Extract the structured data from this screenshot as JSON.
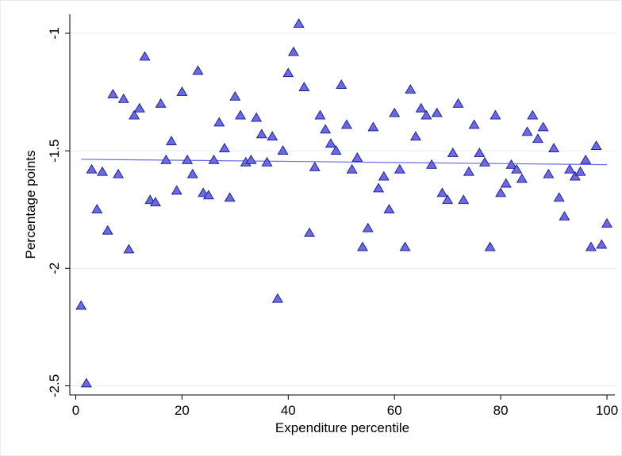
{
  "chart_data": {
    "type": "scatter",
    "xlabel": "Expenditure percentile",
    "ylabel": "Percentage points",
    "xlim": [
      0,
      100
    ],
    "ylim": [
      -2.5,
      -1
    ],
    "xticks": [
      0,
      20,
      40,
      60,
      80,
      100
    ],
    "yticks": [
      -1,
      -1.5,
      -2,
      -2.5
    ],
    "xtick_labels": [
      "0",
      "20",
      "40",
      "60",
      "80",
      "100"
    ],
    "ytick_labels": [
      "-1",
      "-1.5",
      "-2",
      "-2.5"
    ],
    "grid": "horizontal",
    "legend": "none",
    "marker": "triangle",
    "colors": {
      "marker_fill": "#6a6ae6",
      "marker_edge": "#1a1a8c",
      "fit_line": "#6a6ae6",
      "grid": "#e6ecf2"
    },
    "series": [
      {
        "x": [
          1,
          2,
          3,
          4,
          5,
          6,
          7,
          8,
          9,
          10,
          11,
          12,
          13,
          14,
          15,
          16,
          17,
          18,
          19,
          20,
          21,
          22,
          23,
          24,
          25,
          26,
          27,
          28,
          29,
          30,
          31,
          32,
          33,
          34,
          35,
          36,
          37,
          38,
          39,
          40,
          41,
          42,
          43,
          44,
          45,
          46,
          47,
          48,
          49,
          50,
          51,
          52,
          53,
          54,
          55,
          56,
          57,
          58,
          59,
          60,
          61,
          62,
          63,
          64,
          65,
          66,
          67,
          68,
          69,
          70,
          71,
          72,
          73,
          74,
          75,
          76,
          77,
          78,
          79,
          80,
          81,
          82,
          83,
          84,
          85,
          86,
          87,
          88,
          89,
          90,
          91,
          92,
          93,
          94,
          95,
          96,
          97,
          98,
          99,
          100
        ],
        "y": [
          -2.16,
          -2.49,
          -1.58,
          -1.75,
          -1.59,
          -1.84,
          -1.26,
          -1.6,
          -1.28,
          -1.92,
          -1.35,
          -1.32,
          -1.1,
          -1.71,
          -1.72,
          -1.3,
          -1.54,
          -1.46,
          -1.67,
          -1.25,
          -1.54,
          -1.6,
          -1.16,
          -1.68,
          -1.69,
          -1.54,
          -1.38,
          -1.49,
          -1.7,
          -1.27,
          -1.35,
          -1.55,
          -1.54,
          -1.36,
          -1.43,
          -1.55,
          -1.44,
          -2.13,
          -1.5,
          -1.17,
          -1.08,
          -0.96,
          -1.23,
          -1.85,
          -1.57,
          -1.35,
          -1.41,
          -1.47,
          -1.5,
          -1.22,
          -1.39,
          -1.58,
          -1.53,
          -1.91,
          -1.83,
          -1.4,
          -1.66,
          -1.61,
          -1.75,
          -1.34,
          -1.58,
          -1.91,
          -1.24,
          -1.44,
          -1.32,
          -1.35,
          -1.56,
          -1.34,
          -1.68,
          -1.71,
          -1.51,
          -1.3,
          -1.71,
          -1.59,
          -1.39,
          -1.51,
          -1.55,
          -1.91,
          -1.35,
          -1.68,
          -1.64,
          -1.56,
          -1.58,
          -1.62,
          -1.42,
          -1.35,
          -1.45,
          -1.4,
          -1.6,
          -1.49,
          -1.7,
          -1.78,
          -1.58,
          -1.61,
          -1.59,
          -1.54,
          -1.91,
          -1.48,
          -1.9,
          -1.81
        ]
      }
    ],
    "fit_line": {
      "x": [
        1,
        100
      ],
      "y": [
        -1.536,
        -1.559
      ]
    }
  }
}
